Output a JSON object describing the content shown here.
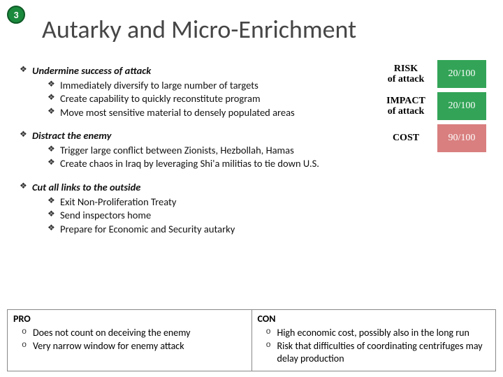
{
  "badge": {
    "number": "3",
    "bg": "#1b8a3d",
    "border": "#0e5a26"
  },
  "title": "Autarky and Micro-Enrichment",
  "title_color": "#464646",
  "title_fontsize": 36,
  "body_fontsize": 14.5,
  "bullets": [
    {
      "text": "Undermine success of attack",
      "sub": [
        "Immediately diversify to large number of targets",
        "Create capability to quickly reconstitute program",
        "Move most sensitive material to densely populated areas"
      ]
    },
    {
      "text": "Distract the enemy",
      "sub": [
        "Trigger large conflict between Zionists, Hezbollah, Hamas",
        "Create chaos in Iraq by leveraging Shi'a militias to tie down U.S."
      ]
    },
    {
      "text": "Cut all links to the outside",
      "sub": [
        "Exit Non-Proliferation Treaty",
        "Send inspectors home",
        "Prepare for Economic and Security autarky"
      ]
    }
  ],
  "risk": {
    "font": "Georgia",
    "rows": [
      {
        "label_top": "RISK",
        "label_bot": "of attack",
        "value": "20/100",
        "color": "#33a457"
      },
      {
        "label_top": "IMPACT",
        "label_bot": "of attack",
        "value": "20/100",
        "color": "#33a457"
      },
      {
        "label_top": "COST",
        "label_bot": "",
        "value": "90/100",
        "color": "#d97f7f"
      }
    ]
  },
  "procon": {
    "pro_header": "PRO",
    "con_header": "CON",
    "pro": [
      "Does not count on deceiving the enemy",
      "Very narrow window for enemy attack"
    ],
    "con": [
      "High economic cost, possibly also in the long run",
      "Risk that difficulties of coordinating centrifuges may delay production"
    ]
  }
}
